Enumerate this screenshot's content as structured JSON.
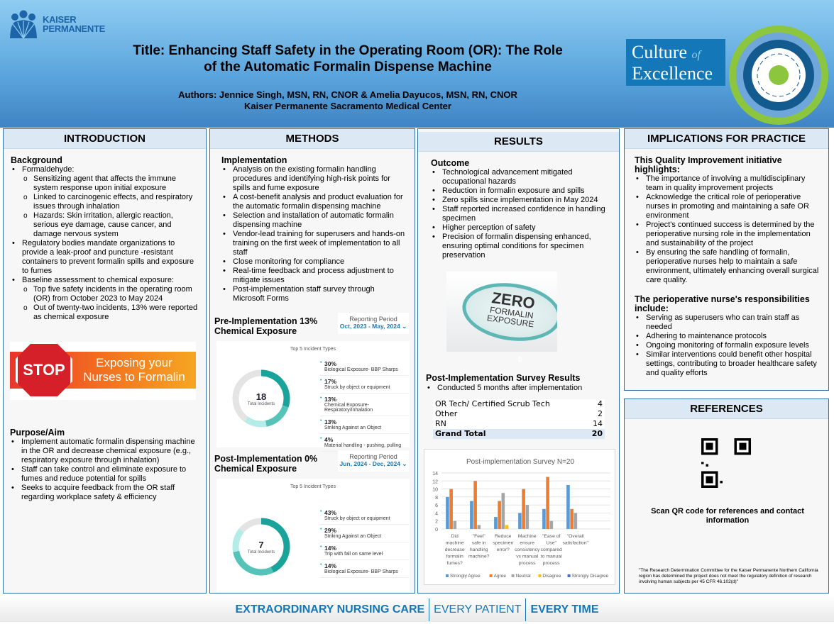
{
  "header": {
    "logo": {
      "line1": "KAISER",
      "line2": "PERMANENTE"
    },
    "title": "Title: Enhancing Staff Safety in the Operating Room (OR): The Role of the Automatic Formalin Dispense Machine",
    "authors": "Authors: Jennice Singh, MSN, RN, CNOR & Amelia Dayucos, MSN, RN, CNOR",
    "institution": "Kaiser Permanente Sacramento Medical Center",
    "badge": {
      "line1": "Culture",
      "of": "of",
      "line2": "Excellence"
    }
  },
  "introduction": {
    "heading": "INTRODUCTION",
    "background_title": "Background",
    "items": [
      {
        "text": "Formaldehyde:",
        "level": 1
      },
      {
        "text": "Sensitizing agent that affects the immune system response upon initial exposure",
        "level": 2
      },
      {
        "text": "Linked to carcinogenic effects, and respiratory issues through inhalation",
        "level": 2
      },
      {
        "text": "Hazards: Skin irritation, allergic reaction, serious eye damage, cause cancer, and damage nervous system",
        "level": 2
      },
      {
        "text": "Regulatory bodies mandate organizations to provide a leak-proof and puncture -resistant containers to prevent formalin spills and exposure to fumes",
        "level": 1
      },
      {
        "text": "Baseline assessment to chemical exposure:",
        "level": 1
      },
      {
        "text": "Top five safety incidents in the operating room (OR) from October 2023 to May 2024",
        "level": 2
      },
      {
        "text": "Out of twenty-two incidents, 13% were reported as chemical exposure",
        "level": 2
      }
    ],
    "stop_image": {
      "sign": "STOP",
      "text": "Exposing your Nurses to Formalin"
    },
    "purpose_title": "Purpose/Aim",
    "purpose_items": [
      "Implement automatic formalin dispensing machine in the OR and decrease chemical exposure (e.g., respiratory exposure through inhalation)",
      "Staff can take control and eliminate exposure to fumes and reduce potential for spills",
      "Seeks to acquire feedback from the OR staff regarding workplace safety & efficiency"
    ]
  },
  "methods": {
    "heading": "METHODS",
    "impl_title": "Implementation",
    "items": [
      "Analysis on the existing formalin handling procedures and identifying high-risk points for spills and fume exposure",
      "A cost-benefit analysis and product evaluation for the automatic formalin dispensing machine",
      "Selection and installation of automatic formalin dispensing machine",
      "Vendor-lead training for superusers and hands-on training on the first week of implementation to all staff",
      "Close monitoring for compliance",
      "Real-time feedback and process adjustment to mitigate issues",
      "Post-implementation staff survey through Microsoft Forms"
    ],
    "pre": {
      "title": "Pre-Implementation 13% Chemical Exposure",
      "reporting_label": "Reporting Period",
      "reporting_value": "Oct, 2023 - May, 2024",
      "chart_title": "Top 5 Incident Types",
      "total": "18",
      "total_label": "Total Incidents",
      "legend": [
        {
          "pct": "30%",
          "label": "Biological Exposure- BBP Sharps"
        },
        {
          "pct": "17%",
          "label": "Struck by object or equipment"
        },
        {
          "pct": "13%",
          "label": "Chemical Exposure- Respiratory/Inhalation"
        },
        {
          "pct": "13%",
          "label": "Striking Against an Object"
        },
        {
          "pct": "4%",
          "label": "Material handling - pushing, pulling"
        }
      ]
    },
    "post": {
      "title": "Post-Implementation 0% Chemical Exposure",
      "reporting_label": "Reporting Period",
      "reporting_value": "Jun, 2024 - Dec, 2024",
      "chart_title": "Top 5 Incident Types",
      "total": "7",
      "total_label": "Total Incidents",
      "legend": [
        {
          "pct": "43%",
          "label": "Struck by object or equipment"
        },
        {
          "pct": "29%",
          "label": "Striking Against an Object"
        },
        {
          "pct": "14%",
          "label": "Trip with fall on same level"
        },
        {
          "pct": "14%",
          "label": "Biological Exposure- BBP Sharps"
        }
      ]
    }
  },
  "results": {
    "heading": "RESULTS",
    "outcome_title": "Outcome",
    "items": [
      "Technological advancement mitigated occupational hazards",
      "Reduction in formalin exposure and spills",
      "Zero spills since implementation in May 2024",
      "Staff reported increased confidence in handling specimen",
      "Higher perception of safety",
      "Precision of formalin dispensing enhanced, ensuring optimal conditions for specimen preservation"
    ],
    "zero_image": {
      "line1": "ZERO",
      "line2": "FORMALIN",
      "line3": "EXPOSURE",
      "caption": "0"
    },
    "survey_title": "Post-Implementation Survey Results",
    "survey_note": "Conducted 5 months after implementation",
    "table": [
      {
        "role": "OR Tech/ Certified Scrub Tech",
        "count": "4"
      },
      {
        "role": "Other",
        "count": "2"
      },
      {
        "role": "RN",
        "count": "14"
      },
      {
        "role": "Grand Total",
        "count": "20"
      }
    ]
  },
  "implications": {
    "heading": "IMPLICATIONS FOR PRACTICE",
    "intro": "This Quality Improvement initiative highlights:",
    "items": [
      "The importance of involving a multidisciplinary team in quality improvement projects",
      "Acknowledge the critical role of perioperative nurses in promoting and maintaining a safe OR environment",
      "Project's continued success is determined by the perioperative nursing role in the implementation and sustainability of the project",
      "By ensuring the safe handling of formalin, perioperative nurses help to maintain a safe environment, ultimately enhancing overall surgical care quality."
    ],
    "resp_title": "The perioperative nurse's responsibilities include:",
    "resp_items": [
      "Serving as superusers who can train staff as needed",
      "Adhering to maintenance protocols",
      "Ongoing monitoring of formalin exposure levels",
      "Similar interventions could benefit other hospital settings, contributing to broader healthcare safety and quality efforts"
    ]
  },
  "references": {
    "heading": "REFERENCES",
    "qr_caption": "Scan QR code for references and contact information",
    "disclaimer": "\"The Research Determination Committee for the Kaiser Permanente Northern California region has determined the project does not meet the regulatory definition of research involving human subjects per 45 CFR 46.102(d)\""
  },
  "footer": {
    "part1": "EXTRAORDINARY NURSING CARE",
    "part2": "EVERY PATIENT",
    "part3": "EVERY TIME"
  },
  "colors": {
    "teal_dark": "#1aa39a",
    "teal_mid": "#56c3b9",
    "teal_light": "#b4ece8",
    "gray": "#e4e4e4",
    "brand_blue": "#1478b8"
  },
  "chart_data": [
    {
      "type": "pie",
      "subtype": "donut",
      "title": "Top 5 Incident Types",
      "categories": [
        "Biological Exposure- BBP Sharps",
        "Struck by object or equipment",
        "Chemical Exposure- Respiratory/Inhalation",
        "Striking Against an Object",
        "Material handling - pushing, pulling"
      ],
      "values": [
        30,
        17,
        13,
        13,
        4
      ]
    },
    {
      "type": "pie",
      "subtype": "donut",
      "title": "Top 5 Incident Types",
      "categories": [
        "Struck by object or equipment",
        "Striking Against an Object",
        "Trip with fall on same level",
        "Biological Exposure- BBP Sharps"
      ],
      "values": [
        43,
        29,
        14,
        14
      ]
    },
    {
      "type": "bar",
      "title": "Post-implementation Survey  N=20",
      "categories": [
        "Did machine decrease formalin fumes?",
        "\"Feel\" safe in handling machine?",
        "Reduce specimen error?",
        "Machine ensure consistency vs manual process",
        "\"Ease of Use\" compared to manual process",
        "\"Overall satisfaction\""
      ],
      "series": [
        {
          "name": "Strongly Agree",
          "color": "#5b9bd5",
          "values": [
            8,
            7,
            3,
            4,
            5,
            11
          ]
        },
        {
          "name": "Agree",
          "color": "#ed7d31",
          "values": [
            10,
            12,
            7,
            10,
            13,
            5
          ]
        },
        {
          "name": "Neutral",
          "color": "#a5a5a5",
          "values": [
            2,
            1,
            9,
            6,
            2,
            4
          ]
        },
        {
          "name": "Disagree",
          "color": "#ffc000",
          "values": [
            0,
            0,
            1,
            0,
            0,
            0
          ]
        },
        {
          "name": "Strongly Disagree",
          "color": "#4472c4",
          "values": [
            0,
            0,
            0,
            0,
            0,
            0
          ]
        }
      ],
      "ylim": [
        0,
        14
      ],
      "yticks": [
        0,
        2,
        4,
        6,
        8,
        10,
        12,
        14
      ],
      "grid": true,
      "legend": "bottom"
    }
  ]
}
